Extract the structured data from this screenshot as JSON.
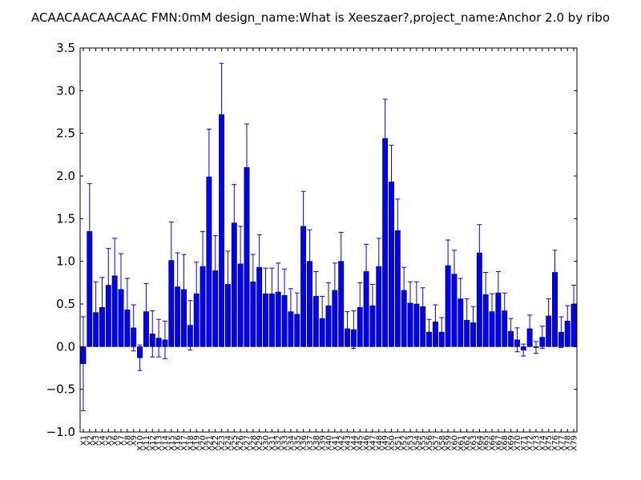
{
  "chart_data": {
    "type": "bar",
    "title": "ACAACAACAACAAC  FMN:0mM  design_name:What is Xeeszaer?,project_name:Anchor 2.0 by ribo",
    "xlabel": "",
    "ylabel": "",
    "ylim": [
      -1.0,
      3.5
    ],
    "yticks": [
      "−1.0",
      "−0.5",
      "0.0",
      "0.5",
      "1.0",
      "1.5",
      "2.0",
      "2.5",
      "3.0",
      "3.5"
    ],
    "ytick_values": [
      -1.0,
      -0.5,
      0.0,
      0.5,
      1.0,
      1.5,
      2.0,
      2.5,
      3.0,
      3.5
    ],
    "grid": false,
    "legend": "none",
    "bar_color": "#0000ff",
    "error_color": "#0000ff",
    "categories": [
      "X1",
      "X2",
      "X3",
      "X4",
      "X5",
      "X6",
      "X7",
      "X8",
      "X9",
      "X10",
      "X11",
      "X12",
      "X13",
      "X14",
      "X15",
      "X16",
      "X17",
      "X18",
      "X19",
      "X20",
      "X21",
      "X22",
      "X23",
      "X24",
      "X25",
      "X26",
      "X27",
      "X28",
      "X29",
      "X30",
      "X31",
      "X32",
      "X33",
      "X34",
      "X35",
      "X36",
      "X37",
      "X38",
      "X39",
      "X40",
      "X41",
      "X42",
      "X43",
      "X44",
      "X45",
      "X46",
      "X47",
      "X48",
      "X49",
      "X50",
      "X51",
      "X52",
      "X53",
      "X54",
      "X55",
      "X56",
      "X57",
      "X58",
      "X59",
      "X60",
      "X61",
      "X62",
      "X63",
      "X64",
      "X65",
      "X66",
      "X67",
      "X68",
      "X69",
      "X70",
      "X71",
      "X72",
      "X73",
      "X74",
      "X75",
      "X76",
      "X77",
      "X78",
      "X79"
    ],
    "values": [
      -0.2,
      1.35,
      0.4,
      0.46,
      0.72,
      0.83,
      0.67,
      0.43,
      0.22,
      -0.13,
      0.41,
      0.15,
      0.1,
      0.08,
      1.01,
      0.7,
      0.67,
      0.25,
      0.62,
      0.94,
      1.99,
      0.89,
      2.72,
      0.73,
      1.45,
      0.97,
      2.1,
      0.76,
      0.93,
      0.62,
      0.62,
      0.64,
      0.6,
      0.41,
      0.38,
      1.41,
      1.0,
      0.59,
      0.33,
      0.48,
      0.66,
      1.0,
      0.21,
      0.2,
      0.46,
      0.88,
      0.48,
      0.94,
      2.44,
      1.93,
      1.36,
      0.66,
      0.51,
      0.5,
      0.47,
      0.17,
      0.29,
      0.17,
      0.95,
      0.85,
      0.56,
      0.31,
      0.28,
      1.1,
      0.61,
      0.41,
      0.63,
      0.42,
      0.18,
      0.08,
      -0.04,
      0.21,
      -0.01,
      0.11,
      0.36,
      0.87,
      0.17,
      0.3,
      0.5
    ],
    "errors": [
      0.55,
      0.56,
      0.36,
      0.35,
      0.43,
      0.44,
      0.42,
      0.37,
      0.27,
      0.15,
      0.33,
      0.27,
      0.22,
      0.22,
      0.45,
      0.4,
      0.41,
      0.29,
      0.37,
      0.41,
      0.56,
      0.41,
      0.6,
      0.39,
      0.45,
      0.44,
      0.51,
      0.32,
      0.38,
      0.3,
      0.3,
      0.34,
      0.31,
      0.27,
      0.25,
      0.41,
      0.37,
      0.29,
      0.26,
      0.27,
      0.32,
      0.34,
      0.2,
      0.22,
      0.29,
      0.32,
      0.25,
      0.33,
      0.46,
      0.43,
      0.37,
      0.27,
      0.25,
      0.26,
      0.22,
      0.15,
      0.2,
      0.17,
      0.3,
      0.28,
      0.24,
      0.25,
      0.19,
      0.33,
      0.26,
      0.21,
      0.25,
      0.21,
      0.15,
      0.14,
      0.07,
      0.16,
      0.07,
      0.13,
      0.2,
      0.26,
      0.18,
      0.18,
      0.22
    ]
  }
}
